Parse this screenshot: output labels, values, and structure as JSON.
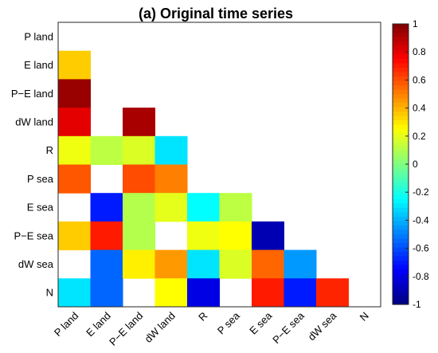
{
  "chart_data": {
    "type": "heatmap",
    "title": "(a) Original time series",
    "rows": [
      "P land",
      "E land",
      "P−E land",
      "dW land",
      "R",
      "P sea",
      "E sea",
      "P−E sea",
      "dW sea",
      "N"
    ],
    "columns": [
      "P land",
      "E land",
      "P−E land",
      "dW land",
      "R",
      "P sea",
      "E sea",
      "P−E sea",
      "dW sea",
      "N"
    ],
    "matrix": [
      [
        null,
        null,
        null,
        null,
        null,
        null,
        null,
        null,
        null,
        null
      ],
      [
        0.35,
        null,
        null,
        null,
        null,
        null,
        null,
        null,
        null,
        null
      ],
      [
        0.95,
        null,
        null,
        null,
        null,
        null,
        null,
        null,
        null,
        null
      ],
      [
        0.8,
        null,
        0.92,
        null,
        null,
        null,
        null,
        null,
        null,
        null
      ],
      [
        0.22,
        0.12,
        0.18,
        -0.3,
        null,
        null,
        null,
        null,
        null,
        null
      ],
      [
        0.58,
        null,
        0.6,
        0.5,
        null,
        null,
        null,
        null,
        null,
        null
      ],
      [
        null,
        -0.7,
        0.1,
        0.2,
        -0.25,
        0.12,
        null,
        null,
        null,
        null
      ],
      [
        0.35,
        0.7,
        0.1,
        null,
        0.22,
        0.25,
        -0.9,
        null,
        null,
        null
      ],
      [
        null,
        -0.55,
        0.28,
        0.45,
        -0.3,
        0.18,
        0.55,
        -0.45,
        null,
        null
      ],
      [
        -0.3,
        -0.55,
        null,
        0.25,
        -0.8,
        null,
        0.7,
        -0.7,
        0.68,
        null
      ]
    ],
    "colorbar": {
      "range": [
        -1,
        1
      ],
      "ticks": [
        "1",
        "0.8",
        "0.6",
        "0.4",
        "0.2",
        "0",
        "-0.2",
        "-0.4",
        "-0.6",
        "-0.8",
        "-1"
      ],
      "colormap": "jet"
    }
  }
}
